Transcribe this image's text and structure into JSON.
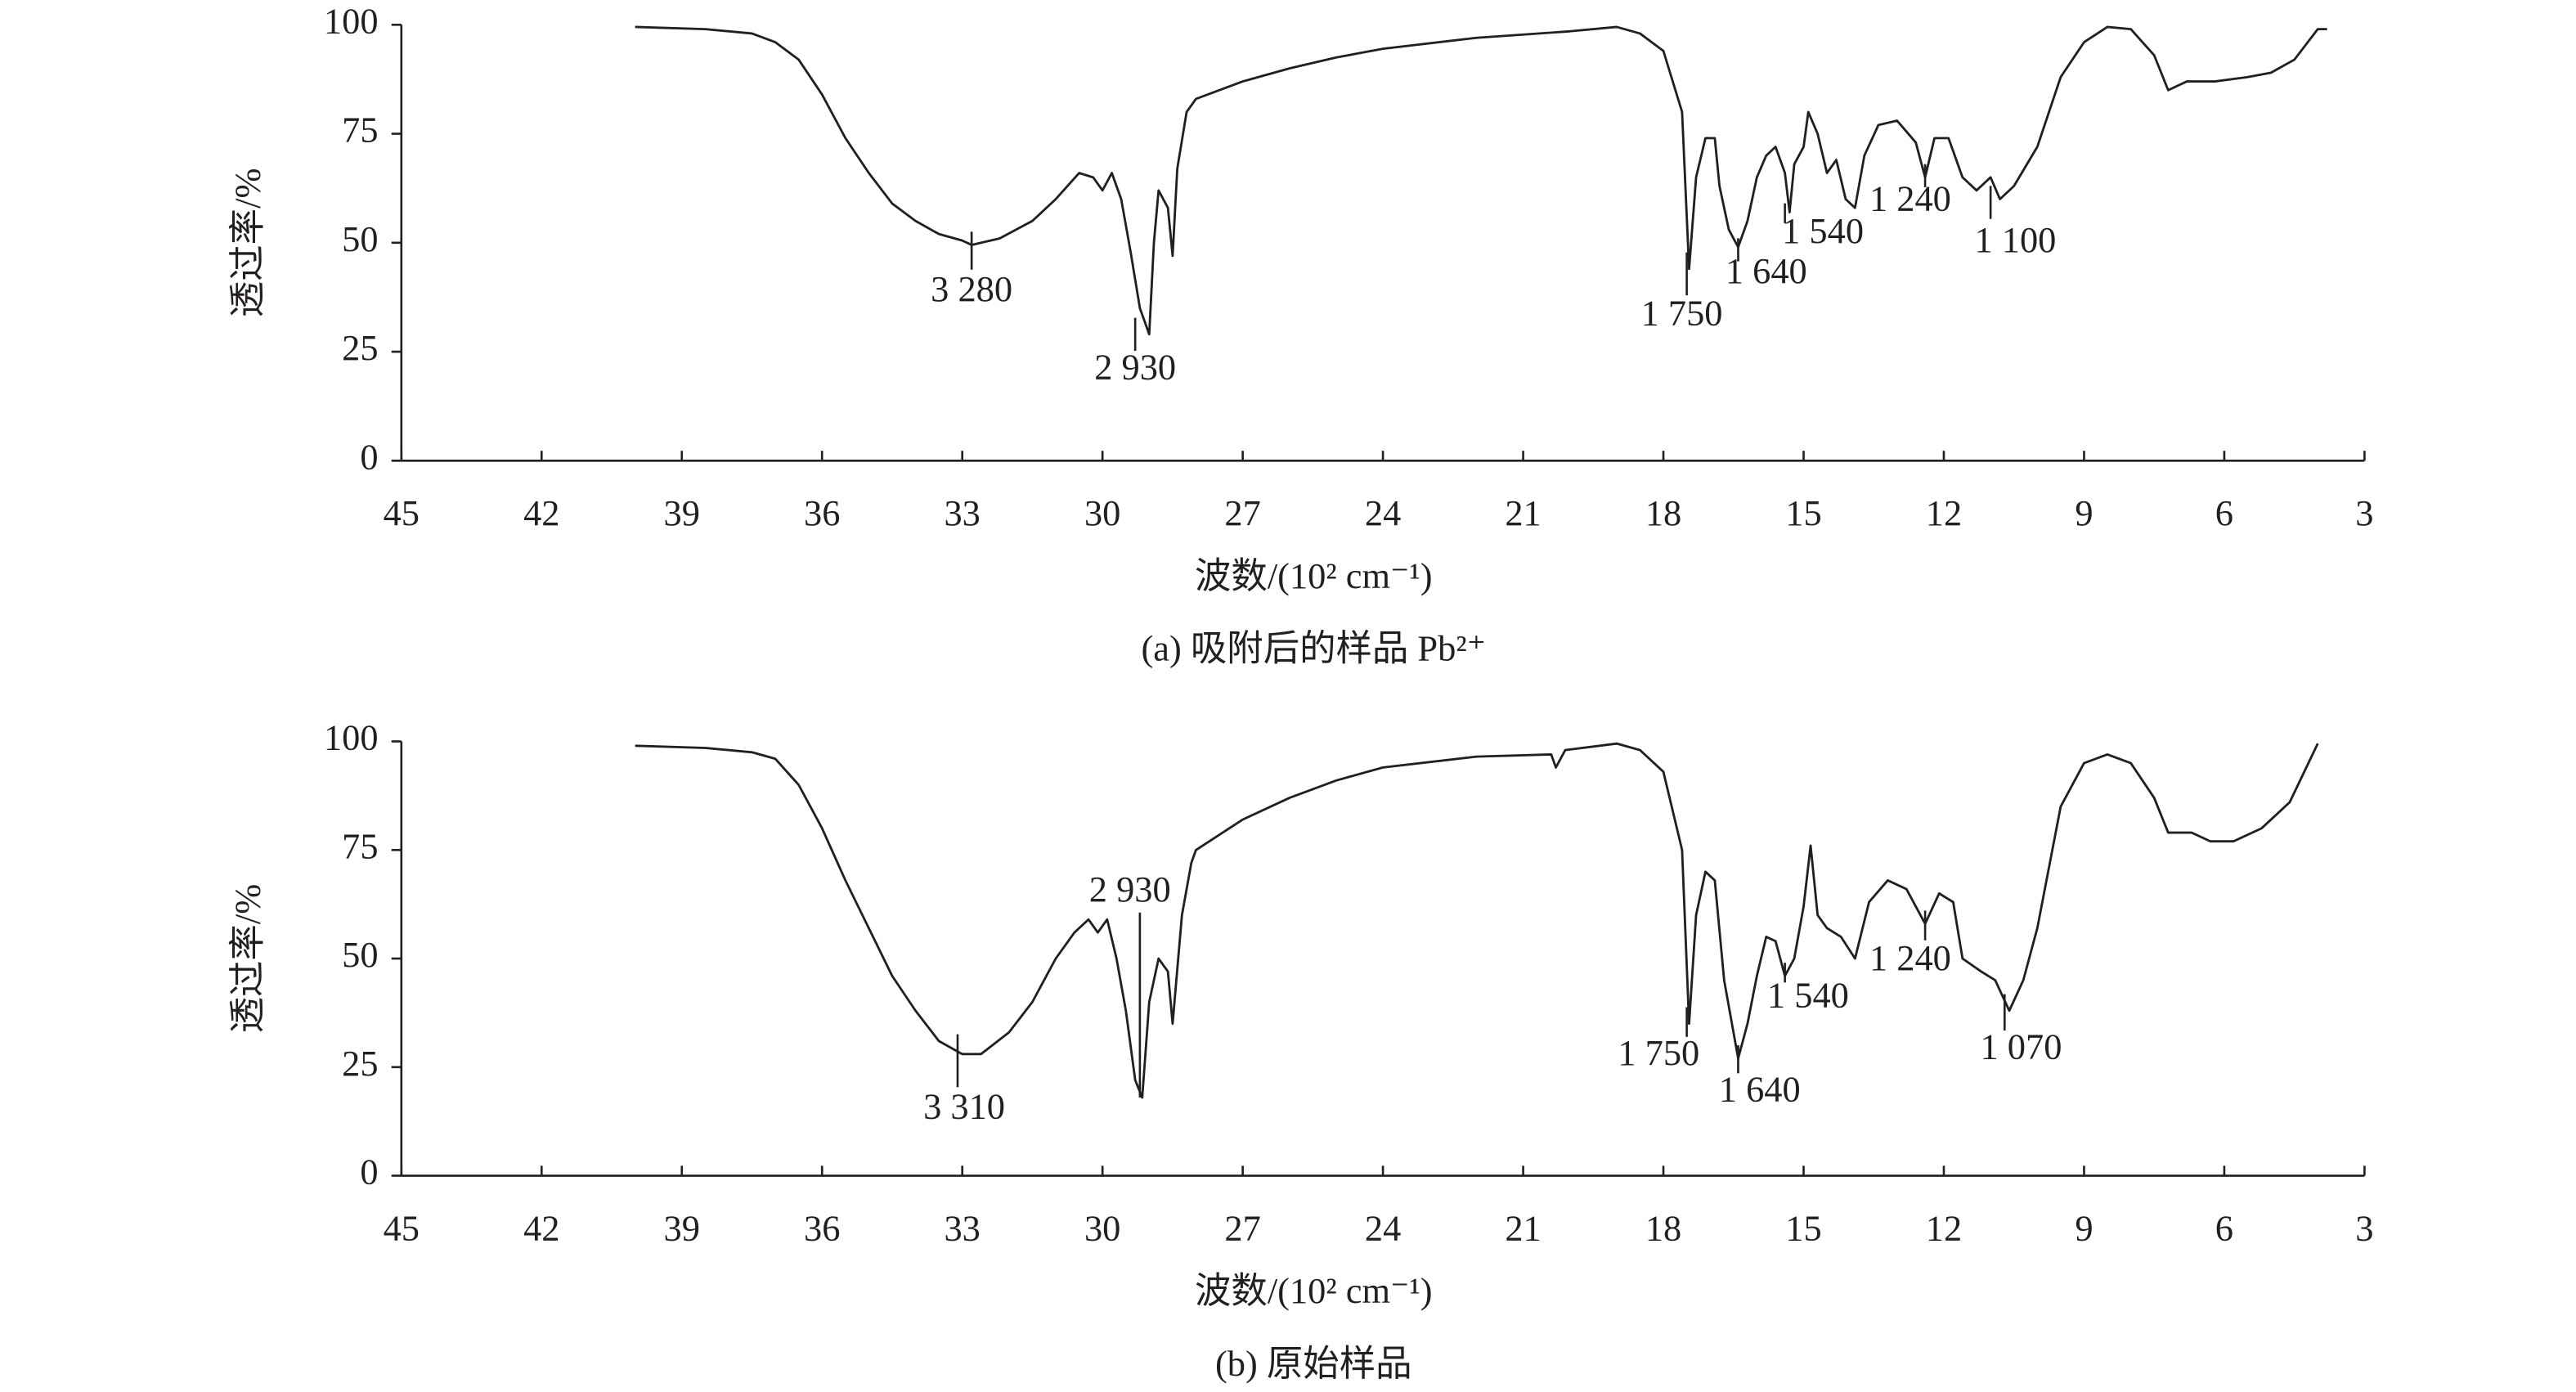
{
  "chart_data": [
    {
      "type": "line",
      "caption": "(a) 吸附后的样品 Pb²⁺",
      "xlabel": "波数/(10² cm⁻¹)",
      "ylabel": "透过率/%",
      "xlim": [
        45,
        3
      ],
      "xticks": [
        45,
        42,
        39,
        36,
        33,
        30,
        27,
        24,
        21,
        18,
        15,
        12,
        9,
        6,
        3
      ],
      "ylim": [
        0,
        100
      ],
      "yticks": [
        0,
        25,
        50,
        75,
        100
      ],
      "color": "#231f20",
      "x": [
        40,
        38.5,
        37.5,
        37,
        36.5,
        36,
        35.5,
        35,
        34.5,
        34,
        33.5,
        33,
        32.8,
        32.2,
        31.5,
        31,
        30.5,
        30.2,
        30,
        29.8,
        29.6,
        29.4,
        29.2,
        29,
        28.9,
        28.8,
        28.6,
        28.5,
        28.4,
        28.2,
        28,
        27,
        26,
        25,
        24,
        22,
        20,
        19,
        18.5,
        18,
        17.6,
        17.45,
        17.3,
        17.1,
        16.9,
        16.8,
        16.6,
        16.4,
        16.2,
        16,
        15.8,
        15.6,
        15.4,
        15.3,
        15.2,
        15,
        14.9,
        14.7,
        14.5,
        14.3,
        14.1,
        13.9,
        13.7,
        13.4,
        13,
        12.6,
        12.4,
        12.2,
        11.9,
        11.6,
        11.3,
        11,
        10.8,
        10.5,
        10,
        9.5,
        9,
        8.5,
        8,
        7.5,
        7.2,
        6.8,
        6.2,
        5.5,
        5,
        4.5,
        4,
        3.8
      ],
      "values": [
        99.5,
        99,
        98,
        96,
        92,
        84,
        74,
        66,
        59,
        55,
        52,
        50.5,
        49.5,
        51,
        55,
        60,
        66,
        65,
        62,
        66,
        60,
        48,
        35,
        29,
        50,
        62,
        58,
        47,
        67,
        80,
        83,
        87,
        90,
        92.5,
        94.5,
        97,
        98.5,
        99.5,
        98,
        94,
        80,
        44,
        65,
        74,
        74,
        63,
        53,
        49,
        55,
        65,
        70,
        72,
        66,
        57,
        68,
        72,
        80,
        75,
        66,
        69,
        60,
        58,
        70,
        77,
        78,
        73,
        65,
        74,
        74,
        65,
        62,
        65,
        60,
        63,
        72,
        88,
        96,
        99.5,
        99,
        93,
        85,
        87,
        87,
        88,
        89,
        92,
        99,
        99
      ],
      "annotations": [
        {
          "text": "3 280",
          "x": 32.8,
          "y": 49.5
        },
        {
          "text": "2 930",
          "x": 29.3,
          "y": 29
        },
        {
          "text": "1 750",
          "x": 17.5,
          "y": 44
        },
        {
          "text": "1 640",
          "x": 16.4,
          "y": 48
        },
        {
          "text": "1 540",
          "x": 15.4,
          "y": 56
        },
        {
          "text": "1 240",
          "x": 12.4,
          "y": 65
        },
        {
          "text": "1 100",
          "x": 11,
          "y": 60
        }
      ]
    },
    {
      "type": "line",
      "caption": "(b) 原始样品",
      "xlabel": "波数/(10² cm⁻¹)",
      "ylabel": "透过率/%",
      "xlim": [
        45,
        3
      ],
      "xticks": [
        45,
        42,
        39,
        36,
        33,
        30,
        27,
        24,
        21,
        18,
        15,
        12,
        9,
        6,
        3
      ],
      "ylim": [
        0,
        100
      ],
      "yticks": [
        0,
        25,
        50,
        75,
        100
      ],
      "color": "#231f20",
      "x": [
        40,
        38.5,
        37.5,
        37,
        36.5,
        36,
        35.5,
        35,
        34.5,
        34,
        33.5,
        33,
        32.6,
        32,
        31.5,
        31,
        30.6,
        30.3,
        30.1,
        29.9,
        29.7,
        29.5,
        29.3,
        29.15,
        29,
        28.8,
        28.6,
        28.5,
        28.3,
        28.1,
        28,
        27,
        26,
        25,
        24,
        22,
        20.4,
        20.3,
        20.1,
        19,
        18.5,
        18,
        17.6,
        17.45,
        17.3,
        17.1,
        16.9,
        16.7,
        16.4,
        16.2,
        16,
        15.8,
        15.6,
        15.4,
        15.2,
        15,
        14.85,
        14.7,
        14.5,
        14.2,
        13.9,
        13.6,
        13.2,
        12.8,
        12.4,
        12.1,
        11.8,
        11.6,
        11.2,
        10.9,
        10.6,
        10.3,
        10,
        9.5,
        9,
        8.5,
        8,
        7.5,
        7.2,
        6.7,
        6.3,
        5.8,
        5.2,
        4.6,
        4
      ],
      "values": [
        99,
        98.5,
        97.5,
        96,
        90,
        80,
        68,
        57,
        46,
        38,
        31,
        28,
        28,
        33,
        40,
        50,
        56,
        59,
        56,
        59,
        50,
        38,
        22,
        18,
        40,
        50,
        47,
        35,
        60,
        72,
        75,
        82,
        87,
        91,
        94,
        96.5,
        97,
        94,
        98,
        99.5,
        98,
        93,
        75,
        35,
        60,
        70,
        68,
        45,
        27,
        35,
        46,
        55,
        54,
        46,
        50,
        62,
        76,
        60,
        57,
        55,
        50,
        63,
        68,
        66,
        58,
        65,
        63,
        50,
        47,
        45,
        38,
        45,
        57,
        85,
        95,
        97,
        95,
        87,
        79,
        79,
        77,
        77,
        80,
        86,
        99.5
      ],
      "annotations": [
        {
          "text": "3 310",
          "x": 33.1,
          "y": 28
        },
        {
          "text": "2 930",
          "x": 29.2,
          "y": 18
        },
        {
          "text": "1 750",
          "x": 17.5,
          "y": 35
        },
        {
          "text": "1 640",
          "x": 16.4,
          "y": 27
        },
        {
          "text": "1 540",
          "x": 15.4,
          "y": 46
        },
        {
          "text": "1 240",
          "x": 12.4,
          "y": 58
        },
        {
          "text": "1 070",
          "x": 10.7,
          "y": 38
        }
      ]
    }
  ]
}
